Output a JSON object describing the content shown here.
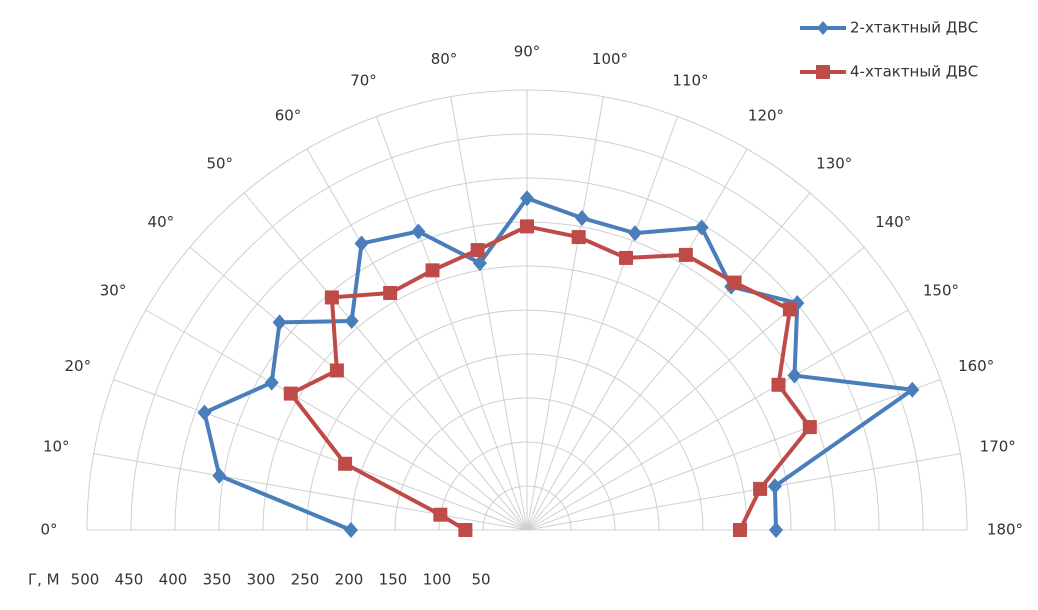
{
  "chart_data": {
    "type": "polar",
    "theta_ticks": [
      {
        "value": 0,
        "label": "0°"
      },
      {
        "value": 10,
        "label": "10°"
      },
      {
        "value": 20,
        "label": "20°"
      },
      {
        "value": 30,
        "label": "30°"
      },
      {
        "value": 40,
        "label": "40°"
      },
      {
        "value": 50,
        "label": "50°"
      },
      {
        "value": 60,
        "label": "60°"
      },
      {
        "value": 70,
        "label": "70°"
      },
      {
        "value": 80,
        "label": "80°"
      },
      {
        "value": 90,
        "label": "90°"
      },
      {
        "value": 100,
        "label": "100°"
      },
      {
        "value": 110,
        "label": "110°"
      },
      {
        "value": 120,
        "label": "120°"
      },
      {
        "value": 130,
        "label": "130°"
      },
      {
        "value": 140,
        "label": "140°"
      },
      {
        "value": 150,
        "label": "150°"
      },
      {
        "value": 160,
        "label": "160°"
      },
      {
        "value": 170,
        "label": "170°"
      },
      {
        "value": 180,
        "label": "180°"
      }
    ],
    "r_axis_label": "Г, М",
    "rlim": [
      0,
      500
    ],
    "rticks": [
      500,
      450,
      400,
      350,
      300,
      250,
      200,
      150,
      100,
      50
    ],
    "theta": [
      0,
      10,
      20,
      30,
      40,
      50,
      60,
      70,
      80,
      90,
      100,
      110,
      120,
      130,
      140,
      150,
      160,
      170,
      180
    ],
    "grid": true,
    "legend": "top-right",
    "series": [
      {
        "name": "2-хтактный ДВС",
        "color": "#4a7ebb",
        "marker": "diamond",
        "values": [
          200,
          355,
          390,
          335,
          367,
          310,
          376,
          361,
          308,
          377,
          360,
          359,
          397,
          361,
          401,
          351,
          466,
          286,
          283
        ]
      },
      {
        "name": "4-хтактный ДВС",
        "color": "#be4b48",
        "marker": "square",
        "values": [
          70,
          100,
          220,
          310,
          282,
          345,
          311,
          314,
          323,
          345,
          338,
          329,
          361,
          367,
          390,
          330,
          342,
          269,
          242
        ]
      }
    ]
  }
}
